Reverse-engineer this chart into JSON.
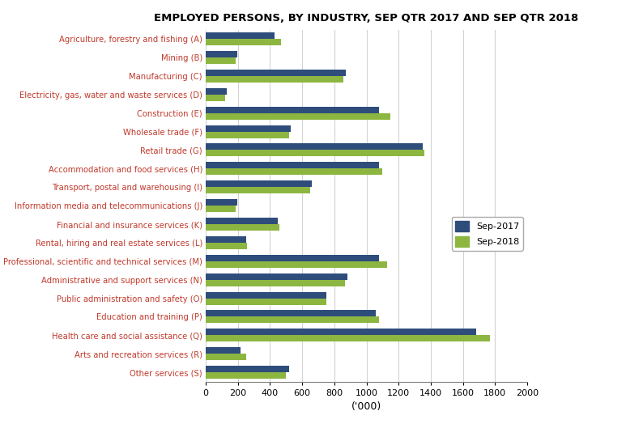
{
  "title": "EMPLOYED PERSONS, BY INDUSTRY, SEP QTR 2017 AND SEP QTR 2018",
  "categories": [
    "Agriculture, forestry and fishing (A)",
    "Mining (B)",
    "Manufacturing (C)",
    "Electricity, gas, water and waste services (D)",
    "Construction (E)",
    "Wholesale trade (F)",
    "Retail trade (G)",
    "Accommodation and food services (H)",
    "Transport, postal and warehousing (I)",
    "Information media and telecommunications (J)",
    "Financial and insurance services (K)",
    "Rental, hiring and real estate services (L)",
    "Professional, scientific and technical services (M)",
    "Administrative and support services (N)",
    "Public administration and safety (O)",
    "Education and training (P)",
    "Health care and social assistance (Q)",
    "Arts and recreation services (R)",
    "Other services (S)"
  ],
  "sep2017": [
    430,
    195,
    870,
    130,
    1080,
    530,
    1350,
    1080,
    660,
    195,
    450,
    250,
    1080,
    880,
    750,
    1060,
    1680,
    215,
    520
  ],
  "sep2018": [
    470,
    185,
    855,
    120,
    1150,
    520,
    1360,
    1100,
    650,
    185,
    460,
    255,
    1130,
    865,
    750,
    1080,
    1770,
    250,
    500
  ],
  "color_2017": "#2E4D7B",
  "color_2018": "#8DB641",
  "xlabel": "('000)",
  "xlim": [
    0,
    2000
  ],
  "xticks": [
    0,
    200,
    400,
    600,
    800,
    1000,
    1200,
    1400,
    1600,
    1800,
    2000
  ],
  "legend_labels": [
    "Sep-2017",
    "Sep-2018"
  ],
  "bar_height": 0.35,
  "figsize": [
    7.94,
    5.24
  ],
  "dpi": 100
}
